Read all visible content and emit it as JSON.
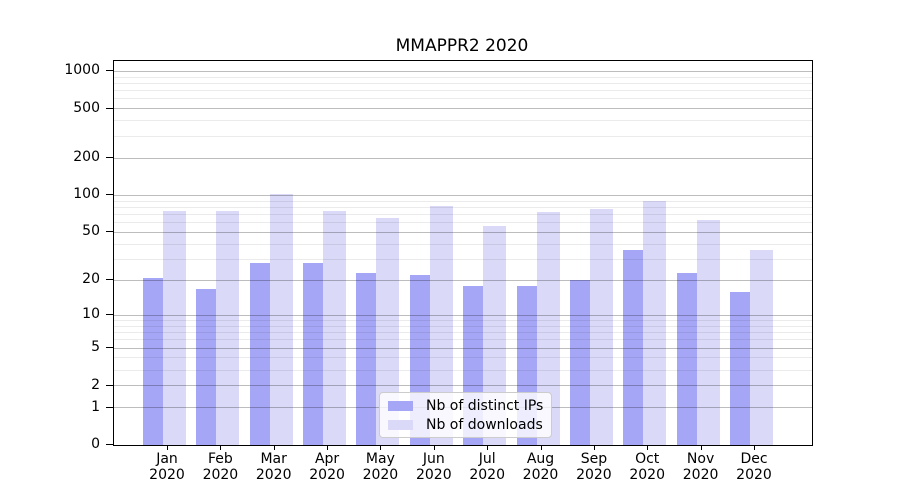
{
  "figure": {
    "title": "MMAPPR2 2020"
  },
  "legend": {
    "items": [
      {
        "label": "Nb of distinct IPs",
        "color": "#a6a6f7"
      },
      {
        "label": "Nb of downloads",
        "color": "#dadaf8"
      }
    ]
  },
  "chart_data": {
    "type": "bar",
    "title": "MMAPPR2 2020",
    "categories": [
      "Jan",
      "Feb",
      "Mar",
      "Apr",
      "May",
      "Jun",
      "Jul",
      "Aug",
      "Sep",
      "Oct",
      "Nov",
      "Dec"
    ],
    "category_year": "2020",
    "series": [
      {
        "name": "Nb of distinct IPs",
        "color": "#a6a6f7",
        "values": [
          21,
          17,
          28,
          28,
          23,
          22,
          18,
          18,
          20,
          36,
          23,
          16
        ]
      },
      {
        "name": "Nb of downloads",
        "color": "#dadaf8",
        "values": [
          75,
          75,
          102,
          75,
          65,
          82,
          56,
          73,
          78,
          90,
          63,
          36
        ]
      }
    ],
    "xlabel": "",
    "ylabel": "",
    "yscale": "log10(1+x)",
    "ylim": [
      0,
      1210
    ],
    "y_major_ticks": [
      0,
      1,
      2,
      5,
      10,
      20,
      50,
      100,
      200,
      500,
      1000
    ],
    "y_minor_gridlines": [
      3,
      4,
      6,
      7,
      8,
      9,
      30,
      40,
      60,
      70,
      80,
      90,
      300,
      400,
      600,
      700,
      800,
      900
    ],
    "grid": true,
    "legend_position": "lower center"
  }
}
